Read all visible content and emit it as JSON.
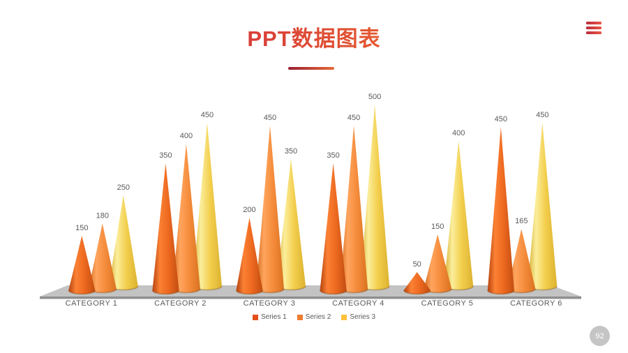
{
  "header": {
    "title": "PPT数据图表"
  },
  "menu": {
    "icon": "hamburger",
    "color_start": "#BB2C3D",
    "color_end": "#E85742"
  },
  "footer": {
    "page_number": "92"
  },
  "chart_data": {
    "type": "bar",
    "variant": "3d-cone",
    "title": "",
    "xlabel": "",
    "ylabel": "",
    "categories": [
      "CATEGORY 1",
      "CATEGORY 2",
      "CATEGORY 3",
      "CATEGORY 4",
      "CATEGORY 5",
      "CATEGORY 6"
    ],
    "series": [
      {
        "name": "Series 1",
        "color": "#E2511C",
        "cone_shades": [
          "#B6430F",
          "#FB8134",
          "#ED6920",
          "#C24D10"
        ],
        "values": [
          150,
          350,
          200,
          350,
          50,
          450
        ]
      },
      {
        "name": "Series 2",
        "color": "#ED7D31",
        "cone_shades": [
          "#D06A1E",
          "#FFA55E",
          "#F58C3C",
          "#D97320"
        ],
        "values": [
          180,
          400,
          450,
          450,
          150,
          165
        ]
      },
      {
        "name": "Series 3",
        "color": "#FFC13D",
        "cone_shades": [
          "#D3AA2C",
          "#FBEE9C",
          "#F3CF4E",
          "#DCB230"
        ],
        "values": [
          250,
          450,
          350,
          500,
          400,
          450
        ]
      }
    ],
    "data_labels": true,
    "legend_position": "bottom",
    "grid": false,
    "label_color": "#595959",
    "floor_color": "#C3C3C3",
    "floor_edge_color": "#8F8F8F",
    "ylim": [
      0,
      500
    ]
  }
}
